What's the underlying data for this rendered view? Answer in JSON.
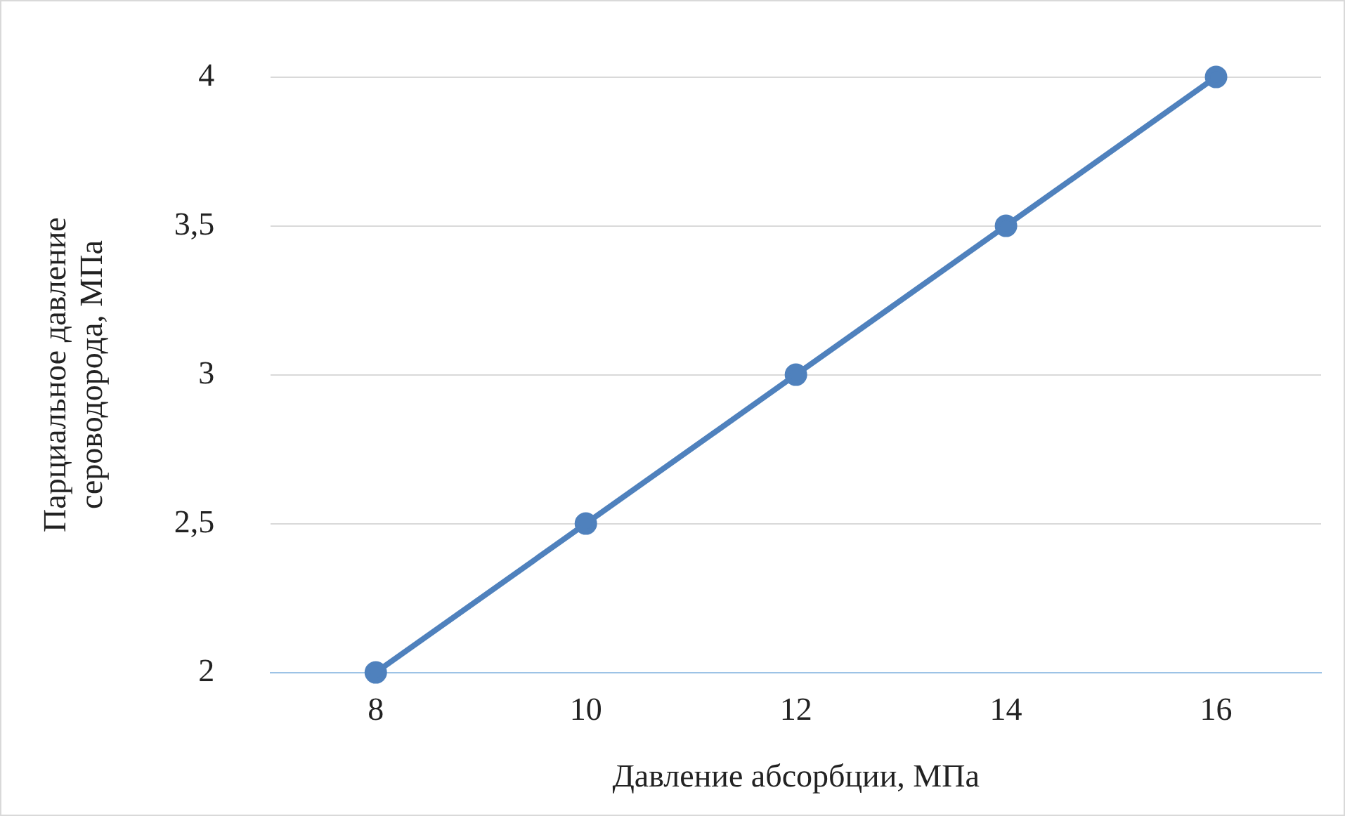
{
  "chart_data": {
    "type": "line",
    "xlabel": "Давление абсорбции, МПа",
    "ylabel": "Парциальное давление сероводорода, МПа",
    "categories": [
      "8",
      "10",
      "12",
      "14",
      "16"
    ],
    "series": [
      {
        "color": "#4f81bd",
        "values": [
          2,
          2.5,
          3,
          3.5,
          4
        ]
      }
    ],
    "ylim": [
      2,
      4
    ],
    "yticks": [
      2,
      {
        "value": 2.5,
        "label": "2,5"
      },
      3,
      {
        "value": 3.5,
        "label": "3,5"
      },
      4
    ],
    "grid": "y",
    "legend": false,
    "marker": "circle",
    "line_style": "solid"
  }
}
